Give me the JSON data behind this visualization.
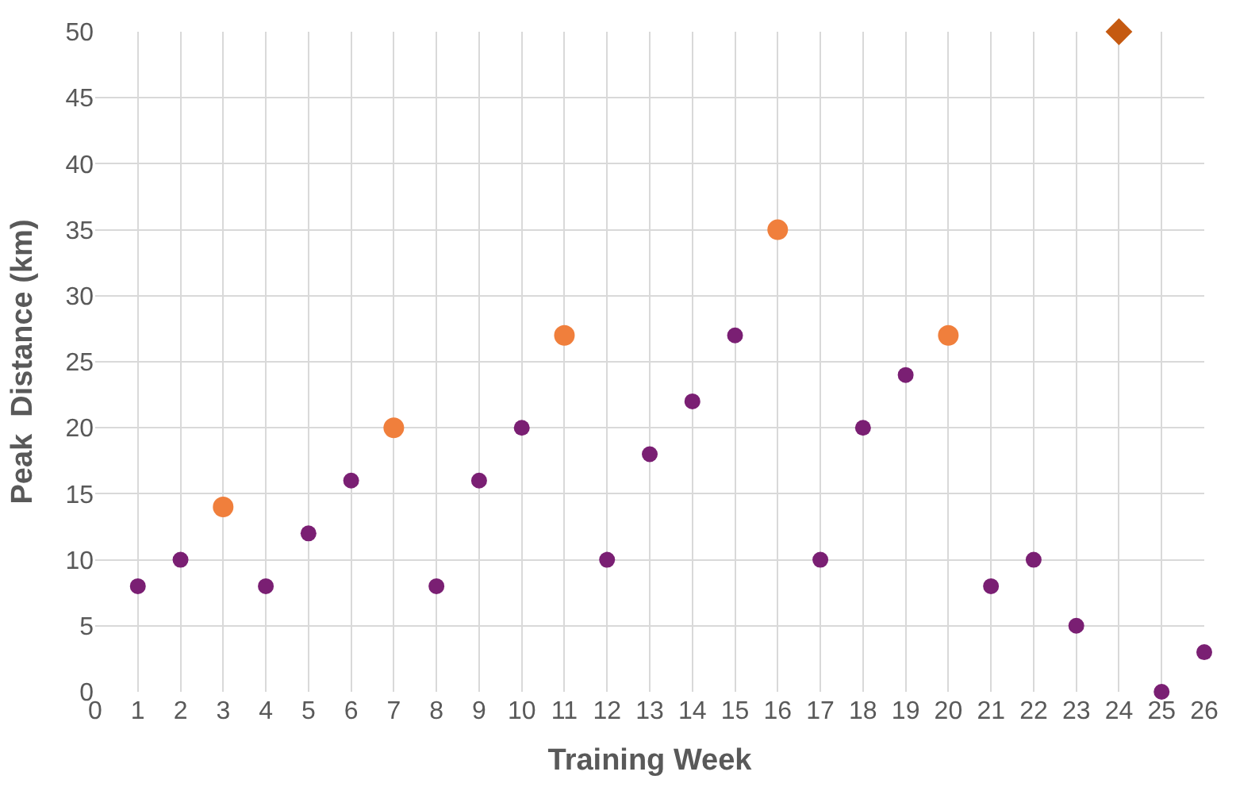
{
  "chart_data": {
    "type": "scatter",
    "xlabel": "Training Week",
    "ylabel": "Peak  Distance (km)",
    "xlim": [
      0,
      26
    ],
    "xticks": [
      0,
      1,
      2,
      3,
      4,
      5,
      6,
      7,
      8,
      9,
      10,
      11,
      12,
      13,
      14,
      15,
      16,
      17,
      18,
      19,
      20,
      21,
      22,
      23,
      24,
      25,
      26
    ],
    "ylim": [
      0,
      50
    ],
    "yticks": [
      0,
      5,
      10,
      15,
      20,
      25,
      30,
      35,
      40,
      45,
      50
    ],
    "grid": true,
    "series": [
      {
        "color": "#7a1f73",
        "marker": "circle",
        "x": [
          1,
          2,
          4,
          5,
          6,
          8,
          9,
          10,
          12,
          13,
          14,
          15,
          17,
          18,
          19,
          21,
          22,
          23,
          25,
          26
        ],
        "values": [
          8,
          10,
          8,
          12,
          16,
          8,
          16,
          20,
          10,
          18,
          22,
          27,
          10,
          20,
          24,
          8,
          10,
          5,
          0,
          3
        ]
      },
      {
        "color": "#f07f3c",
        "marker": "circle",
        "x": [
          3,
          7,
          11,
          16,
          20
        ],
        "values": [
          14,
          20,
          27,
          35,
          27
        ]
      },
      {
        "color": "#c55a11",
        "marker": "diamond",
        "x": [
          24
        ],
        "values": [
          50
        ]
      }
    ]
  }
}
